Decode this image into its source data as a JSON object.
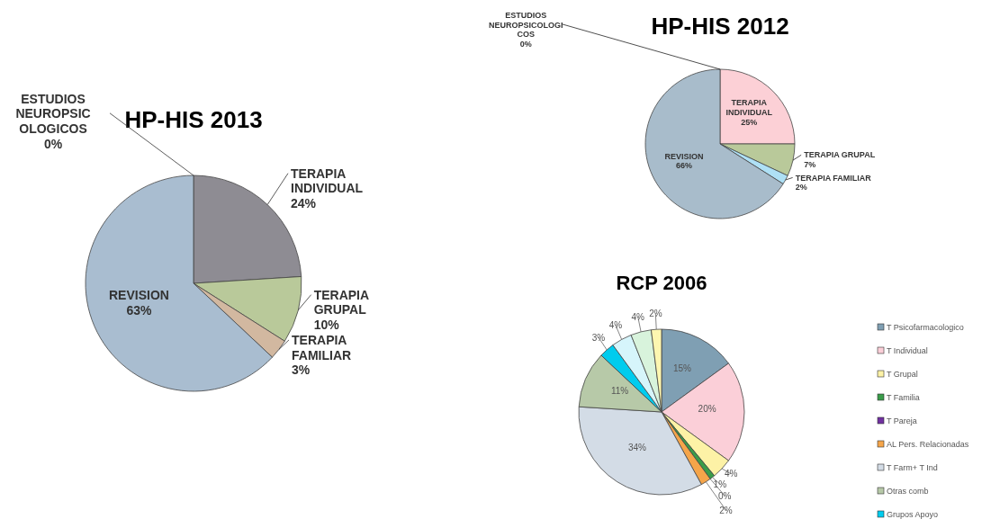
{
  "chart_data": [
    {
      "type": "pie",
      "title": "HP-HIS 2013",
      "categories": [
        "TERAPIA INDIVIDUAL",
        "TERAPIA GRUPAL",
        "TERAPIA FAMILIAR",
        "REVISION",
        "ESTUDIOS NEUROPSICOLOGICOS"
      ],
      "values": [
        24,
        10,
        3,
        63,
        0
      ],
      "value_labels": [
        "24%",
        "10%",
        "3%",
        "63%",
        "0%"
      ],
      "colors": [
        "#8e8c93",
        "#b9c99a",
        "#d2b8a0",
        "#a9bdd0",
        "#e0a060"
      ]
    },
    {
      "type": "pie",
      "title": "HP-HIS 2012",
      "categories": [
        "TERAPIA INDIVIDUAL",
        "TERAPIA GRUPAL",
        "TERAPIA FAMILIAR",
        "REVISION",
        "ESTUDIOS NEUROPSICOLOGICOS"
      ],
      "values": [
        25,
        7,
        2,
        66,
        0
      ],
      "value_labels": [
        "25%",
        "7%",
        "2%",
        "66%",
        "0%"
      ],
      "colors": [
        "#fcd0d6",
        "#b9c99a",
        "#aee0f5",
        "#a8bccb",
        "#e0a060"
      ]
    },
    {
      "type": "pie",
      "title": "RCP 2006",
      "categories": [
        "T Psicofarmacologico",
        "T Individual",
        "T Grupal",
        "T Familia",
        "T Pareja",
        "AL Pers. Relacionadas",
        "T Farm+ T Ind",
        "Otras comb",
        "Grupos Apoyo",
        null,
        null,
        null
      ],
      "values": [
        15,
        20,
        4,
        1,
        0,
        2,
        34,
        11,
        3,
        4,
        4,
        2
      ],
      "value_labels": [
        "15%",
        "20%",
        "4%",
        "1%",
        "0%",
        "2%",
        "34%",
        "11%",
        "3%",
        "4%",
        "4%",
        "2%"
      ],
      "colors": [
        "#7f9fb3",
        "#fbcfd8",
        "#fdf2a6",
        "#3a9c4a",
        "#7030a0",
        "#f5a54a",
        "#d3dce6",
        "#b7c9a8",
        "#00ccee",
        "#d6f5fb",
        "#d8f3dc",
        "#fdf6b0"
      ],
      "legend": "right"
    }
  ]
}
